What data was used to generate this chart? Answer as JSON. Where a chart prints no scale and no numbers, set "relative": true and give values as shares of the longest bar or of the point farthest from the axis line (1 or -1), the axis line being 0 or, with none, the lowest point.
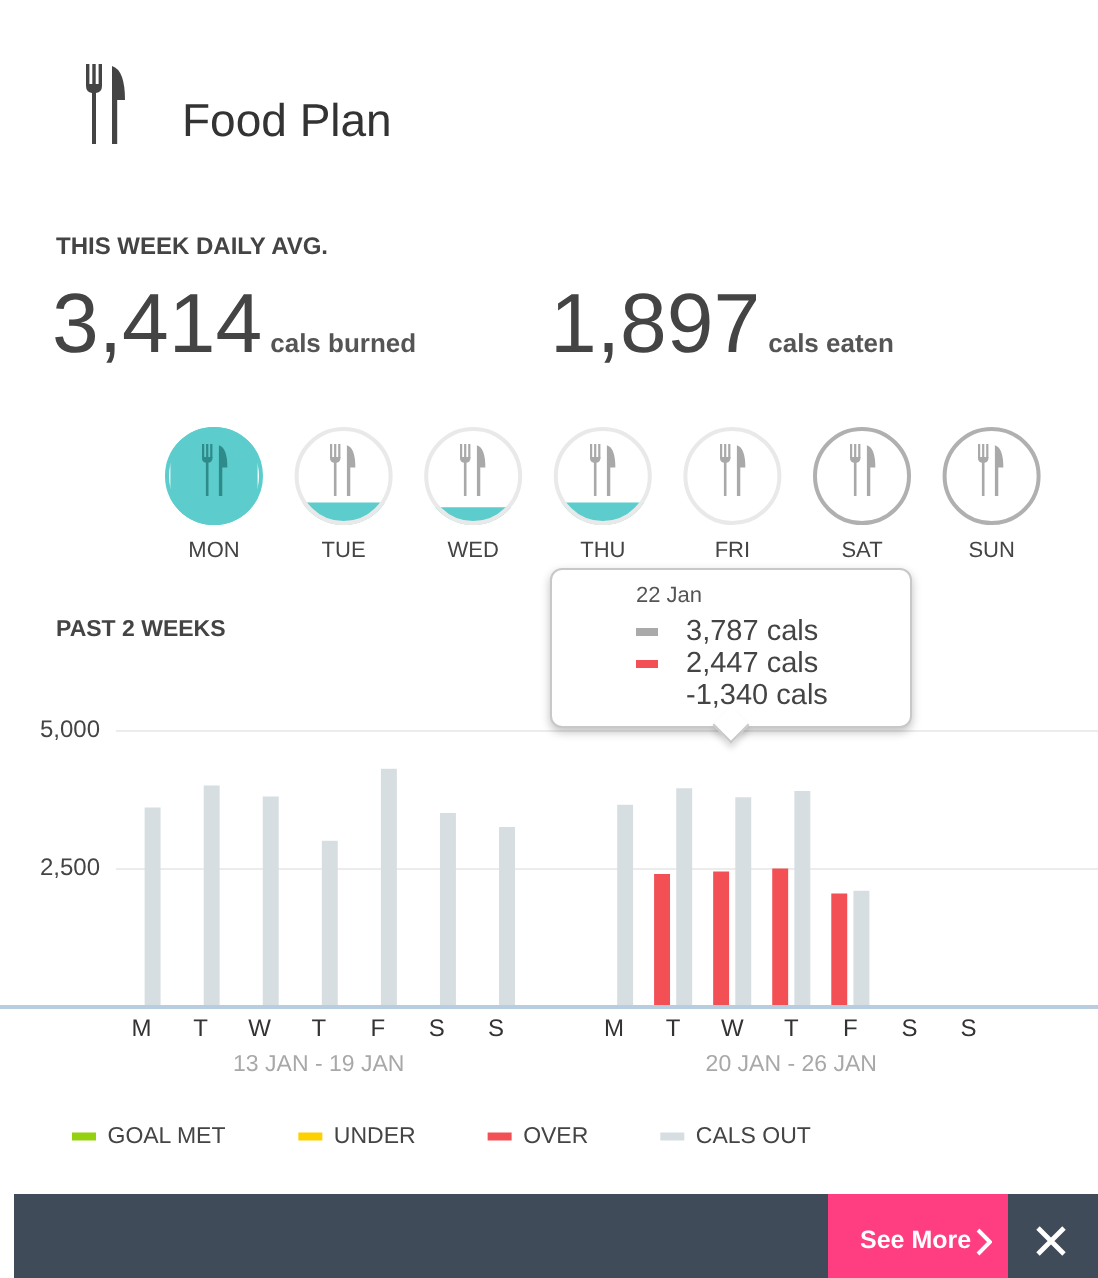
{
  "chart_data": [
    {
      "type": "other",
      "title": "Food Plan",
      "annotations": [
        "THIS WEEK DAILY AVG.",
        "3,414",
        "cals burned",
        "1,897",
        "cals eaten",
        "See More"
      ]
    },
    {
      "type": "bar",
      "relative": true,
      "categories": [
        "MON",
        "TUE",
        "WED",
        "THU",
        "FRI",
        "SAT",
        "SUN"
      ],
      "values": [
        1,
        0.23,
        0.18,
        0.23,
        null,
        null,
        0
      ],
      "color": "#5ccccc"
    },
    {
      "type": "bar",
      "title": "PAST 2 WEEKS",
      "categories": [
        "M",
        "T",
        "W",
        "T",
        "F",
        "S",
        "S",
        null,
        "M",
        "T",
        "W",
        "T",
        "F",
        "S",
        "S"
      ],
      "series": [
        {
          "name": "GOAL MET",
          "color": "#94d10e",
          "values": [
            null,
            null,
            null,
            null,
            null,
            null,
            null,
            null,
            null,
            null,
            null,
            null,
            null,
            null,
            null
          ]
        },
        {
          "name": "UNDER",
          "color": "#ffd000",
          "values": [
            null,
            null,
            null,
            null,
            null,
            null,
            null,
            null,
            null,
            null,
            null,
            null,
            null,
            null,
            null
          ]
        },
        {
          "name": "OVER",
          "color": "#f25055",
          "values": [
            null,
            null,
            null,
            null,
            null,
            null,
            null,
            null,
            null,
            2400,
            2447,
            2500,
            2050,
            null,
            null
          ]
        },
        {
          "name": "CALS OUT",
          "color": "#d6dee2",
          "values": [
            3600,
            4000,
            3800,
            3000,
            4300,
            3500,
            3250,
            null,
            3650,
            3950,
            3787,
            3900,
            2100,
            null,
            null
          ]
        }
      ],
      "ylim": [
        0,
        5000
      ],
      "yticks": [
        {
          "value": 2500,
          "label": "2,500"
        },
        {
          "value": 5000,
          "label": "5,000"
        }
      ],
      "grid": "y",
      "legend": "bottom left",
      "annotations": [
        "13 JAN - 19 JAN",
        "20 JAN - 26 JAN",
        "22 Jan",
        "3,787 cals",
        "2,447 cals",
        "-1,340 cals"
      ]
    }
  ]
}
